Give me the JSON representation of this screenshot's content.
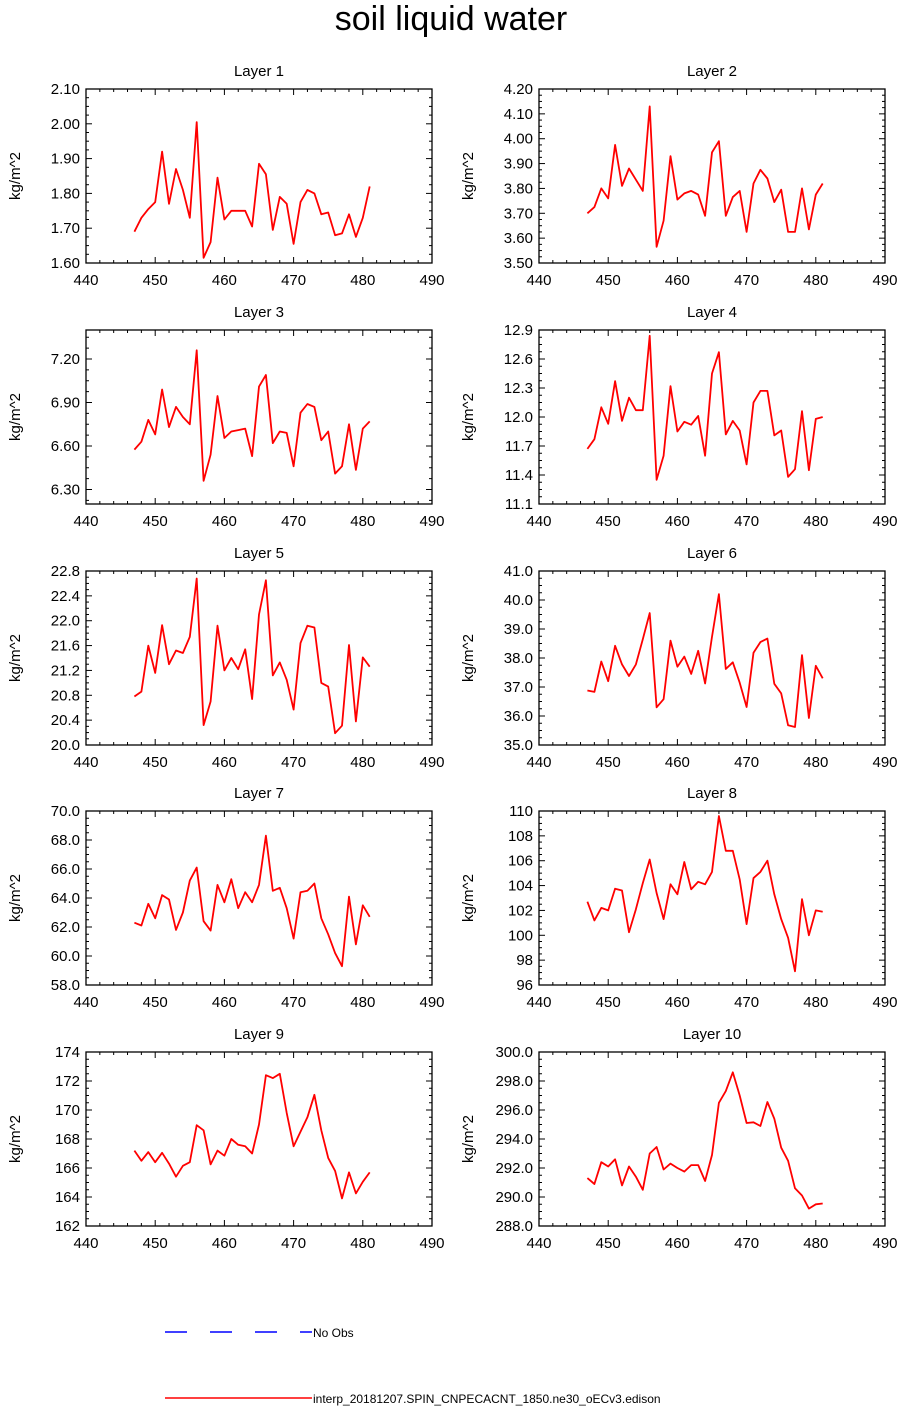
{
  "title": "soil liquid water",
  "legend": {
    "obs_label": "No Obs",
    "model_label": "interp_20181207.SPIN_CNPECACNT_1850.ne30_oECv3.edison",
    "obs_color": "#0000ff",
    "model_color": "#ff0000"
  },
  "chart_data": [
    {
      "type": "line",
      "title": "Layer 1",
      "ylabel": "kg/m^2",
      "xlim": [
        440,
        490
      ],
      "xticks": [
        "440",
        "450",
        "460",
        "470",
        "480",
        "490"
      ],
      "ylim": [
        1.6,
        2.1
      ],
      "yticks": [
        "1.60",
        "1.70",
        "1.80",
        "1.90",
        "2.00",
        "2.10"
      ],
      "x": [
        447,
        448,
        449,
        450,
        451,
        452,
        453,
        454,
        455,
        456,
        457,
        458,
        459,
        460,
        461,
        462,
        463,
        464,
        465,
        466,
        467,
        468,
        469,
        470,
        471,
        472,
        473,
        474,
        475,
        476,
        477,
        478,
        479,
        480,
        481
      ],
      "series": [
        {
          "values": [
            1.69,
            1.73,
            1.755,
            1.775,
            1.92,
            1.77,
            1.87,
            1.81,
            1.73,
            2.005,
            1.615,
            1.66,
            1.845,
            1.725,
            1.75,
            1.75,
            1.75,
            1.705,
            1.885,
            1.855,
            1.695,
            1.79,
            1.77,
            1.655,
            1.775,
            1.81,
            1.8,
            1.74,
            1.745,
            1.68,
            1.685,
            1.74,
            1.675,
            1.73,
            1.82
          ],
          "color": "#ff0000"
        }
      ]
    },
    {
      "type": "line",
      "title": "Layer 2",
      "ylabel": "kg/m^2",
      "xlim": [
        440,
        490
      ],
      "xticks": [
        "440",
        "450",
        "460",
        "470",
        "480",
        "490"
      ],
      "ylim": [
        3.5,
        4.2
      ],
      "yticks": [
        "3.50",
        "3.60",
        "3.70",
        "3.80",
        "3.90",
        "4.00",
        "4.10",
        "4.20"
      ],
      "x": [
        447,
        448,
        449,
        450,
        451,
        452,
        453,
        454,
        455,
        456,
        457,
        458,
        459,
        460,
        461,
        462,
        463,
        464,
        465,
        466,
        467,
        468,
        469,
        470,
        471,
        472,
        473,
        474,
        475,
        476,
        477,
        478,
        479,
        480,
        481
      ],
      "series": [
        {
          "values": [
            3.7,
            3.725,
            3.8,
            3.76,
            3.975,
            3.81,
            3.88,
            3.835,
            3.79,
            4.13,
            3.565,
            3.67,
            3.93,
            3.755,
            3.78,
            3.79,
            3.775,
            3.69,
            3.945,
            3.99,
            3.69,
            3.765,
            3.79,
            3.625,
            3.82,
            3.875,
            3.84,
            3.745,
            3.795,
            3.625,
            3.625,
            3.8,
            3.635,
            3.775,
            3.82
          ],
          "color": "#ff0000"
        }
      ]
    },
    {
      "type": "line",
      "title": "Layer 3",
      "ylabel": "kg/m^2",
      "xlim": [
        440,
        490
      ],
      "xticks": [
        "440",
        "450",
        "460",
        "470",
        "480",
        "490"
      ],
      "ylim": [
        6.2,
        7.4
      ],
      "yticks": [
        "6.30",
        "6.60",
        "6.90",
        "7.20"
      ],
      "x": [
        447,
        448,
        449,
        450,
        451,
        452,
        453,
        454,
        455,
        456,
        457,
        458,
        459,
        460,
        461,
        462,
        463,
        464,
        465,
        466,
        467,
        468,
        469,
        470,
        471,
        472,
        473,
        474,
        475,
        476,
        477,
        478,
        479,
        480,
        481
      ],
      "series": [
        {
          "values": [
            6.575,
            6.63,
            6.78,
            6.68,
            6.99,
            6.73,
            6.87,
            6.8,
            6.75,
            7.26,
            6.36,
            6.54,
            6.945,
            6.655,
            6.7,
            6.71,
            6.72,
            6.53,
            7.01,
            7.09,
            6.62,
            6.7,
            6.69,
            6.46,
            6.83,
            6.89,
            6.87,
            6.64,
            6.7,
            6.41,
            6.46,
            6.75,
            6.435,
            6.72,
            6.77
          ],
          "color": "#ff0000"
        }
      ]
    },
    {
      "type": "line",
      "title": "Layer 4",
      "ylabel": "kg/m^2",
      "xlim": [
        440,
        490
      ],
      "xticks": [
        "440",
        "450",
        "460",
        "470",
        "480",
        "490"
      ],
      "ylim": [
        11.1,
        12.9
      ],
      "yticks": [
        "11.1",
        "11.4",
        "11.7",
        "12.0",
        "12.3",
        "12.6",
        "12.9"
      ],
      "x": [
        447,
        448,
        449,
        450,
        451,
        452,
        453,
        454,
        455,
        456,
        457,
        458,
        459,
        460,
        461,
        462,
        463,
        464,
        465,
        466,
        467,
        468,
        469,
        470,
        471,
        472,
        473,
        474,
        475,
        476,
        477,
        478,
        479,
        480,
        481
      ],
      "series": [
        {
          "values": [
            11.67,
            11.77,
            12.1,
            11.93,
            12.37,
            11.96,
            12.2,
            12.07,
            12.07,
            12.84,
            11.35,
            11.6,
            12.32,
            11.85,
            11.95,
            11.92,
            12.01,
            11.6,
            12.45,
            12.67,
            11.82,
            11.96,
            11.86,
            11.51,
            12.15,
            12.27,
            12.27,
            11.81,
            11.86,
            11.38,
            11.46,
            12.06,
            11.45,
            11.98,
            12.0
          ],
          "color": "#ff0000"
        }
      ]
    },
    {
      "type": "line",
      "title": "Layer 5",
      "ylabel": "kg/m^2",
      "xlim": [
        440,
        490
      ],
      "xticks": [
        "440",
        "450",
        "460",
        "470",
        "480",
        "490"
      ],
      "ylim": [
        20.0,
        22.8
      ],
      "yticks": [
        "20.0",
        "20.4",
        "20.8",
        "21.2",
        "21.6",
        "22.0",
        "22.4",
        "22.8"
      ],
      "x": [
        447,
        448,
        449,
        450,
        451,
        452,
        453,
        454,
        455,
        456,
        457,
        458,
        459,
        460,
        461,
        462,
        463,
        464,
        465,
        466,
        467,
        468,
        469,
        470,
        471,
        472,
        473,
        474,
        475,
        476,
        477,
        478,
        479,
        480,
        481
      ],
      "series": [
        {
          "values": [
            20.78,
            20.86,
            21.6,
            21.16,
            21.93,
            21.3,
            21.52,
            21.48,
            21.74,
            22.68,
            20.32,
            20.7,
            21.92,
            21.2,
            21.4,
            21.22,
            21.54,
            20.74,
            22.1,
            22.65,
            21.12,
            21.33,
            21.05,
            20.57,
            21.64,
            21.92,
            21.89,
            21.0,
            20.94,
            20.19,
            20.31,
            21.61,
            20.38,
            21.41,
            21.26
          ],
          "color": "#ff0000"
        }
      ]
    },
    {
      "type": "line",
      "title": "Layer 6",
      "ylabel": "kg/m^2",
      "xlim": [
        440,
        490
      ],
      "xticks": [
        "440",
        "450",
        "460",
        "470",
        "480",
        "490"
      ],
      "ylim": [
        35.0,
        41.0
      ],
      "yticks": [
        "35.0",
        "36.0",
        "37.0",
        "38.0",
        "39.0",
        "40.0",
        "41.0"
      ],
      "x": [
        447,
        448,
        449,
        450,
        451,
        452,
        453,
        454,
        455,
        456,
        457,
        458,
        459,
        460,
        461,
        462,
        463,
        464,
        465,
        466,
        467,
        468,
        469,
        470,
        471,
        472,
        473,
        474,
        475,
        476,
        477,
        478,
        479,
        480,
        481
      ],
      "series": [
        {
          "values": [
            36.88,
            36.83,
            37.88,
            37.2,
            38.42,
            37.78,
            37.38,
            37.78,
            38.65,
            39.55,
            36.3,
            36.58,
            38.6,
            37.7,
            38.05,
            37.45,
            38.25,
            37.12,
            38.73,
            40.2,
            37.62,
            37.85,
            37.15,
            36.31,
            38.18,
            38.55,
            38.67,
            37.11,
            36.78,
            35.68,
            35.62,
            38.1,
            35.93,
            37.73,
            37.3
          ],
          "color": "#ff0000"
        }
      ]
    },
    {
      "type": "line",
      "title": "Layer 7",
      "ylabel": "kg/m^2",
      "xlim": [
        440,
        490
      ],
      "xticks": [
        "440",
        "450",
        "460",
        "470",
        "480",
        "490"
      ],
      "ylim": [
        58.0,
        70.0
      ],
      "yticks": [
        "58.0",
        "60.0",
        "62.0",
        "64.0",
        "66.0",
        "68.0",
        "70.0"
      ],
      "x": [
        447,
        448,
        449,
        450,
        451,
        452,
        453,
        454,
        455,
        456,
        457,
        458,
        459,
        460,
        461,
        462,
        463,
        464,
        465,
        466,
        467,
        468,
        469,
        470,
        471,
        472,
        473,
        474,
        475,
        476,
        477,
        478,
        479,
        480,
        481
      ],
      "series": [
        {
          "values": [
            62.3,
            62.1,
            63.6,
            62.6,
            64.2,
            63.9,
            61.8,
            63.0,
            65.2,
            66.1,
            62.4,
            61.75,
            64.9,
            63.7,
            65.3,
            63.3,
            64.4,
            63.7,
            64.9,
            68.3,
            64.5,
            64.7,
            63.3,
            61.2,
            64.4,
            64.5,
            65.0,
            62.6,
            61.5,
            60.2,
            59.3,
            64.1,
            60.8,
            63.5,
            62.7
          ],
          "color": "#ff0000"
        }
      ]
    },
    {
      "type": "line",
      "title": "Layer 8",
      "ylabel": "kg/m^2",
      "xlim": [
        440,
        490
      ],
      "xticks": [
        "440",
        "450",
        "460",
        "470",
        "480",
        "490"
      ],
      "ylim": [
        96,
        110
      ],
      "yticks": [
        "96",
        "98",
        "100",
        "102",
        "104",
        "106",
        "108",
        "110"
      ],
      "x": [
        447,
        448,
        449,
        450,
        451,
        452,
        453,
        454,
        455,
        456,
        457,
        458,
        459,
        460,
        461,
        462,
        463,
        464,
        465,
        466,
        467,
        468,
        469,
        470,
        471,
        472,
        473,
        474,
        475,
        476,
        477,
        478,
        479,
        480,
        481
      ],
      "series": [
        {
          "values": [
            102.7,
            101.2,
            102.2,
            102.0,
            103.75,
            103.6,
            100.25,
            102.1,
            104.2,
            106.1,
            103.4,
            101.3,
            104.1,
            103.3,
            105.9,
            103.7,
            104.3,
            104.1,
            105.1,
            109.6,
            106.8,
            106.8,
            104.5,
            100.9,
            104.6,
            105.1,
            106.0,
            103.3,
            101.3,
            99.8,
            97.1,
            102.9,
            100.0,
            102.0,
            101.9
          ],
          "color": "#ff0000"
        }
      ]
    },
    {
      "type": "line",
      "title": "Layer 9",
      "ylabel": "kg/m^2",
      "xlim": [
        440,
        490
      ],
      "xticks": [
        "440",
        "450",
        "460",
        "470",
        "480",
        "490"
      ],
      "ylim": [
        162,
        174
      ],
      "yticks": [
        "162",
        "164",
        "166",
        "168",
        "170",
        "172",
        "174"
      ],
      "x": [
        447,
        448,
        449,
        450,
        451,
        452,
        453,
        454,
        455,
        456,
        457,
        458,
        459,
        460,
        461,
        462,
        463,
        464,
        465,
        466,
        467,
        468,
        469,
        470,
        471,
        472,
        473,
        474,
        475,
        476,
        477,
        478,
        479,
        480,
        481
      ],
      "series": [
        {
          "values": [
            167.2,
            166.5,
            167.1,
            166.4,
            167.05,
            166.3,
            165.4,
            166.15,
            166.4,
            168.95,
            168.6,
            166.25,
            167.2,
            166.85,
            168.0,
            167.6,
            167.5,
            167.0,
            169.0,
            172.4,
            172.2,
            172.5,
            169.8,
            167.5,
            168.5,
            169.5,
            171.05,
            168.6,
            166.7,
            165.8,
            163.9,
            165.7,
            164.25,
            165.05,
            165.7
          ],
          "color": "#ff0000"
        }
      ]
    },
    {
      "type": "line",
      "title": "Layer 10",
      "ylabel": "kg/m^2",
      "xlim": [
        440,
        490
      ],
      "xticks": [
        "440",
        "450",
        "460",
        "470",
        "480",
        "490"
      ],
      "ylim": [
        288.0,
        300.0
      ],
      "yticks": [
        "288.0",
        "290.0",
        "292.0",
        "294.0",
        "296.0",
        "298.0",
        "300.0"
      ],
      "x": [
        447,
        448,
        449,
        450,
        451,
        452,
        453,
        454,
        455,
        456,
        457,
        458,
        459,
        460,
        461,
        462,
        463,
        464,
        465,
        466,
        467,
        468,
        469,
        470,
        471,
        472,
        473,
        474,
        475,
        476,
        477,
        478,
        479,
        480,
        481
      ],
      "series": [
        {
          "values": [
            291.3,
            290.9,
            292.4,
            292.1,
            292.6,
            290.8,
            292.1,
            291.4,
            290.5,
            293.0,
            293.45,
            291.9,
            292.3,
            292.0,
            291.75,
            292.2,
            292.2,
            291.1,
            292.9,
            296.5,
            297.3,
            298.6,
            297.0,
            295.1,
            295.15,
            294.9,
            296.55,
            295.4,
            293.4,
            292.5,
            290.6,
            290.1,
            289.2,
            289.5,
            289.55
          ],
          "color": "#ff0000"
        }
      ]
    }
  ]
}
